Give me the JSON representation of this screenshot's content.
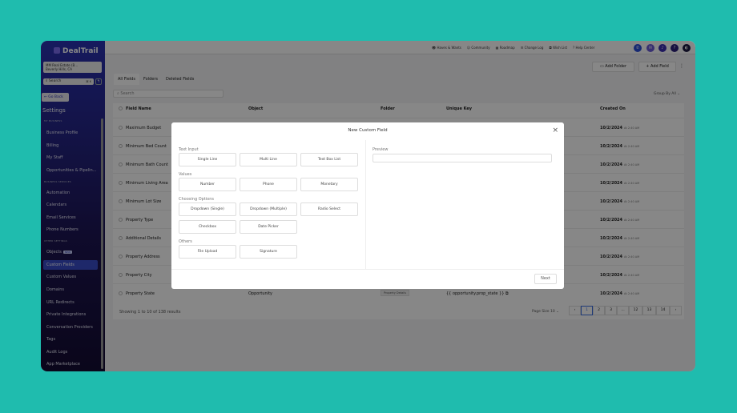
{
  "app": {
    "logo": "DealTrail",
    "account_name": "MM Real Estate (B...",
    "account_location": "Beverly Hills, CA",
    "search_placeholder": "Search",
    "search_shortcut": "⌘ K",
    "go_back": "← Go Back",
    "settings_title": "Settings"
  },
  "sidebar": {
    "sections": [
      {
        "title": "MY BUSINESS",
        "items": [
          "Business Profile",
          "Billing",
          "My Staff",
          "Opportunities & Pipelin..."
        ]
      },
      {
        "title": "BUSINESS SERVICES",
        "items": [
          "Automation",
          "Calendars",
          "Email Services",
          "Phone Numbers"
        ]
      },
      {
        "title": "OTHER SETTINGS",
        "items": [
          "Objects",
          "Custom Fields",
          "Custom Values",
          "Domains",
          "URL Redirects",
          "Private Integrations",
          "Conversation Providers",
          "Tags",
          "Audit Logs",
          "App Marketplace"
        ]
      }
    ],
    "new_badge": "NEW",
    "active": "Custom Fields"
  },
  "topnav": [
    "Haves & Wants",
    "Community",
    "Roadmap",
    "Change Log",
    "Wish List",
    "? Help Center"
  ],
  "toolbar": {
    "add_folder": "Add Folder",
    "add_field": "+ Add Field",
    "more": "⋮"
  },
  "tabs": [
    "All Fields",
    "Folders",
    "Deleted Fields"
  ],
  "search_placeholder": "Search",
  "group_by": "Group By All ⌄",
  "table": {
    "headers": [
      "Field Name",
      "Object",
      "Folder",
      "Unique Key",
      "Created On"
    ],
    "rows": [
      {
        "name": "Maximum Budget",
        "date": "10/2/2024",
        "time": "At 2:40 AM"
      },
      {
        "name": "Minimum Bed Count",
        "date": "10/2/2024",
        "time": "At 2:40 AM"
      },
      {
        "name": "Minimum Bath Count",
        "date": "10/2/2024",
        "time": "At 2:40 AM"
      },
      {
        "name": "Minimum Living Area",
        "date": "10/2/2024",
        "time": "At 2:40 AM"
      },
      {
        "name": "Minimum Lot Size",
        "date": "10/2/2024",
        "time": "At 2:40 AM"
      },
      {
        "name": "Property Type",
        "date": "10/2/2024",
        "time": "At 2:40 AM"
      },
      {
        "name": "Additional Details",
        "date": "10/2/2024",
        "time": "At 2:40 AM"
      },
      {
        "name": "Property Address",
        "date": "10/2/2024",
        "time": "At 2:40 AM"
      },
      {
        "name": "Property City",
        "date": "10/2/2024",
        "time": "At 2:40 AM"
      },
      {
        "name": "Property State",
        "object": "Opportunity",
        "folder": "Property Details",
        "key": "{{ opportunity.prop_state }}",
        "date": "10/2/2024",
        "time": "At 2:40 AM"
      }
    ]
  },
  "footer": {
    "showing": "Showing 1 to 10 of 138 results",
    "page_size": "Page Size 10 ⌄",
    "pages": [
      "‹",
      "1",
      "2",
      "3",
      "...",
      "12",
      "13",
      "14",
      "›"
    ],
    "current": "1"
  },
  "modal": {
    "title": "New Custom Field",
    "close": "×",
    "groups": [
      {
        "label": "Text Input",
        "options": [
          "Single Line",
          "Multi Line",
          "Text Box List"
        ]
      },
      {
        "label": "Values",
        "options": [
          "Number",
          "Phone",
          "Monetary"
        ]
      },
      {
        "label": "Choosing Options",
        "options": [
          "Dropdown (Single)",
          "Dropdown (Multiple)",
          "Radio Select",
          "Checkbox",
          "Date Picker"
        ]
      },
      {
        "label": "Others",
        "options": [
          "File Upload",
          "Signature"
        ]
      }
    ],
    "preview_label": "Preview",
    "next": "Next"
  }
}
